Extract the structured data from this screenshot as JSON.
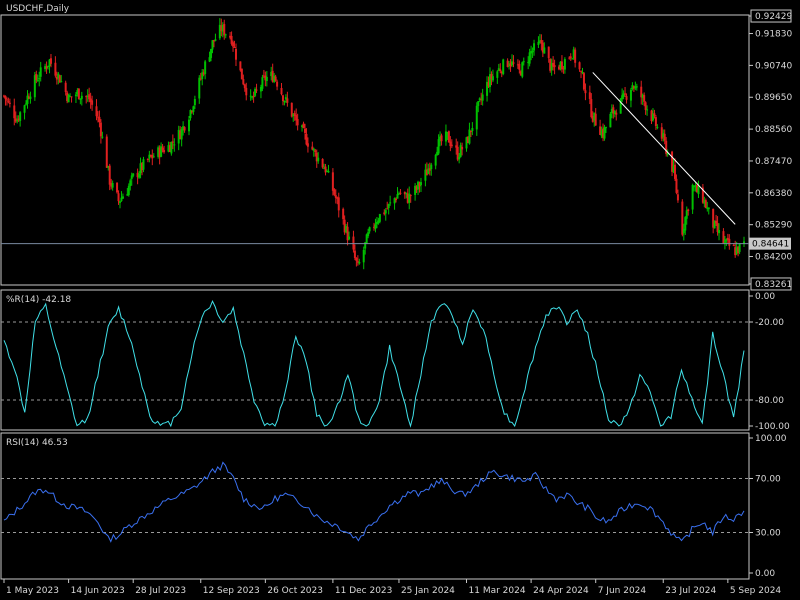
{
  "colors": {
    "background": "#000000",
    "border": "#c8c8c8",
    "bull": "#00c000",
    "bear": "#e02020",
    "wpr": "#40e0e8",
    "rsi": "#3a70f0",
    "trendline": "#ffffff",
    "level_line": "#7a8aa0",
    "text": "#d8d8d8"
  },
  "chart_data": [
    {
      "type": "candlestick",
      "title": "USDCHF,Daily",
      "ylim": [
        0.8326,
        0.9243
      ],
      "yticks": [
        "0.92429",
        "0.91830",
        "0.90740",
        "0.89650",
        "0.88560",
        "0.87470",
        "0.86380",
        "0.85290",
        "0.84200",
        "0.83261"
      ],
      "current_price": "0.84641",
      "trend_line": {
        "from": {
          "date": "2024-06-05",
          "price": 0.905
        },
        "to": {
          "date": "2024-09-10",
          "price": 0.853
        }
      },
      "xlabels": [
        "1 May 2023",
        "14 Jun 2023",
        "28 Jul 2023",
        "12 Sep 2023",
        "26 Oct 2023",
        "11 Dec 2023",
        "25 Jan 2024",
        "11 Mar 2024",
        "24 Apr 2024",
        "7 Jun 2024",
        "23 Jul 2024",
        "5 Sep 2024"
      ],
      "close_path": [
        [
          "2023-05-01",
          0.897
        ],
        [
          "2023-05-10",
          0.889
        ],
        [
          "2023-05-22",
          0.902
        ],
        [
          "2023-06-01",
          0.909
        ],
        [
          "2023-06-08",
          0.903
        ],
        [
          "2023-06-14",
          0.896
        ],
        [
          "2023-06-20",
          0.898
        ],
        [
          "2023-06-28",
          0.896
        ],
        [
          "2023-07-05",
          0.888
        ],
        [
          "2023-07-12",
          0.868
        ],
        [
          "2023-07-18",
          0.861
        ],
        [
          "2023-07-24",
          0.865
        ],
        [
          "2023-07-28",
          0.869
        ],
        [
          "2023-08-07",
          0.875
        ],
        [
          "2023-08-15",
          0.878
        ],
        [
          "2023-08-22",
          0.88
        ],
        [
          "2023-08-30",
          0.885
        ],
        [
          "2023-09-05",
          0.892
        ],
        [
          "2023-09-12",
          0.903
        ],
        [
          "2023-09-20",
          0.915
        ],
        [
          "2023-09-26",
          0.92
        ],
        [
          "2023-10-03",
          0.917
        ],
        [
          "2023-10-09",
          0.905
        ],
        [
          "2023-10-16",
          0.895
        ],
        [
          "2023-10-20",
          0.898
        ],
        [
          "2023-10-26",
          0.903
        ],
        [
          "2023-11-01",
          0.904
        ],
        [
          "2023-11-08",
          0.896
        ],
        [
          "2023-11-14",
          0.89
        ],
        [
          "2023-11-22",
          0.883
        ],
        [
          "2023-11-29",
          0.877
        ],
        [
          "2023-12-06",
          0.872
        ],
        [
          "2023-12-13",
          0.862
        ],
        [
          "2023-12-18",
          0.854
        ],
        [
          "2023-12-28",
          0.838
        ],
        [
          "2024-01-04",
          0.849
        ],
        [
          "2024-01-10",
          0.855
        ],
        [
          "2024-01-18",
          0.859
        ],
        [
          "2024-01-25",
          0.864
        ],
        [
          "2024-01-31",
          0.862
        ],
        [
          "2024-02-06",
          0.865
        ],
        [
          "2024-02-13",
          0.871
        ],
        [
          "2024-02-20",
          0.88
        ],
        [
          "2024-02-27",
          0.883
        ],
        [
          "2024-03-05",
          0.877
        ],
        [
          "2024-03-11",
          0.881
        ],
        [
          "2024-03-19",
          0.893
        ],
        [
          "2024-03-26",
          0.902
        ],
        [
          "2024-04-02",
          0.906
        ],
        [
          "2024-04-09",
          0.909
        ],
        [
          "2024-04-16",
          0.905
        ],
        [
          "2024-04-24",
          0.912
        ],
        [
          "2024-05-01",
          0.915
        ],
        [
          "2024-05-08",
          0.906
        ],
        [
          "2024-05-15",
          0.908
        ],
        [
          "2024-05-22",
          0.912
        ],
        [
          "2024-05-29",
          0.903
        ],
        [
          "2024-06-05",
          0.89
        ],
        [
          "2024-06-12",
          0.884
        ],
        [
          "2024-06-18",
          0.891
        ],
        [
          "2024-06-25",
          0.895
        ],
        [
          "2024-07-02",
          0.901
        ],
        [
          "2024-07-09",
          0.896
        ],
        [
          "2024-07-16",
          0.889
        ],
        [
          "2024-07-23",
          0.882
        ],
        [
          "2024-07-30",
          0.871
        ],
        [
          "2024-08-05",
          0.851
        ],
        [
          "2024-08-12",
          0.866
        ],
        [
          "2024-08-19",
          0.862
        ],
        [
          "2024-08-26",
          0.853
        ],
        [
          "2024-09-02",
          0.847
        ],
        [
          "2024-09-10",
          0.844
        ],
        [
          "2024-09-16",
          0.846
        ]
      ]
    },
    {
      "type": "line",
      "title": "%R(14) -42.18",
      "ylim": [
        -100,
        0
      ],
      "yticks": [
        "0.00",
        "-20.00",
        "-80.00",
        "-100.00"
      ],
      "levels": [
        -20,
        -80
      ],
      "x_count": 72,
      "values": [
        -35,
        -55,
        -90,
        -20,
        -8,
        -40,
        -70,
        -100,
        -95,
        -60,
        -25,
        -10,
        -30,
        -60,
        -92,
        -100,
        -98,
        -85,
        -45,
        -15,
        -5,
        -20,
        -10,
        -45,
        -80,
        -98,
        -100,
        -75,
        -30,
        -50,
        -92,
        -100,
        -85,
        -60,
        -95,
        -100,
        -80,
        -40,
        -70,
        -100,
        -60,
        -20,
        -5,
        -15,
        -35,
        -10,
        -25,
        -60,
        -90,
        -100,
        -70,
        -40,
        -15,
        -8,
        -20,
        -10,
        -30,
        -60,
        -95,
        -100,
        -88,
        -60,
        -75,
        -100,
        -92,
        -55,
        -80,
        -100,
        -30,
        -60,
        -95,
        -42
      ]
    },
    {
      "type": "line",
      "title": "RSI(14) 46.53",
      "ylim": [
        0,
        100
      ],
      "yticks": [
        "100.00",
        "70.00",
        "30.00",
        "0.00"
      ],
      "levels": [
        70,
        30
      ],
      "x_count": 72,
      "values": [
        38,
        45,
        52,
        60,
        62,
        55,
        50,
        48,
        45,
        38,
        25,
        28,
        35,
        40,
        45,
        50,
        55,
        58,
        62,
        68,
        75,
        80,
        70,
        55,
        50,
        48,
        55,
        58,
        54,
        50,
        42,
        38,
        35,
        30,
        25,
        35,
        42,
        50,
        55,
        60,
        58,
        65,
        68,
        62,
        58,
        62,
        70,
        75,
        72,
        70,
        68,
        72,
        62,
        55,
        58,
        52,
        48,
        40,
        38,
        45,
        50,
        52,
        48,
        40,
        30,
        22,
        32,
        38,
        30,
        42,
        40,
        46
      ]
    }
  ]
}
